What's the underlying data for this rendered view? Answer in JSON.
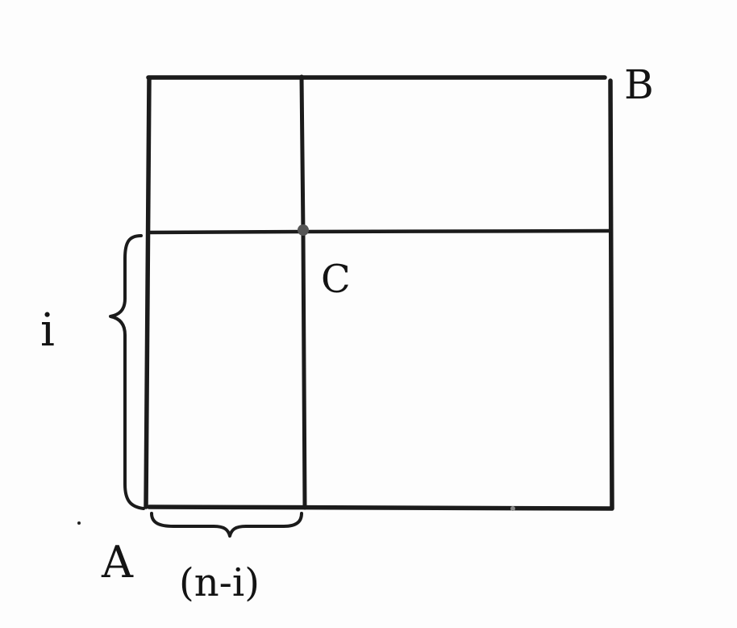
{
  "diagram": {
    "labels": {
      "top_right_corner": "B",
      "bottom_left_corner": "A",
      "grid_point": "C",
      "vertical_span": "i",
      "horizontal_span": "(n-i)"
    },
    "colors": {
      "ink": "#1b1b1b",
      "paper": "#fdfdfd"
    }
  }
}
